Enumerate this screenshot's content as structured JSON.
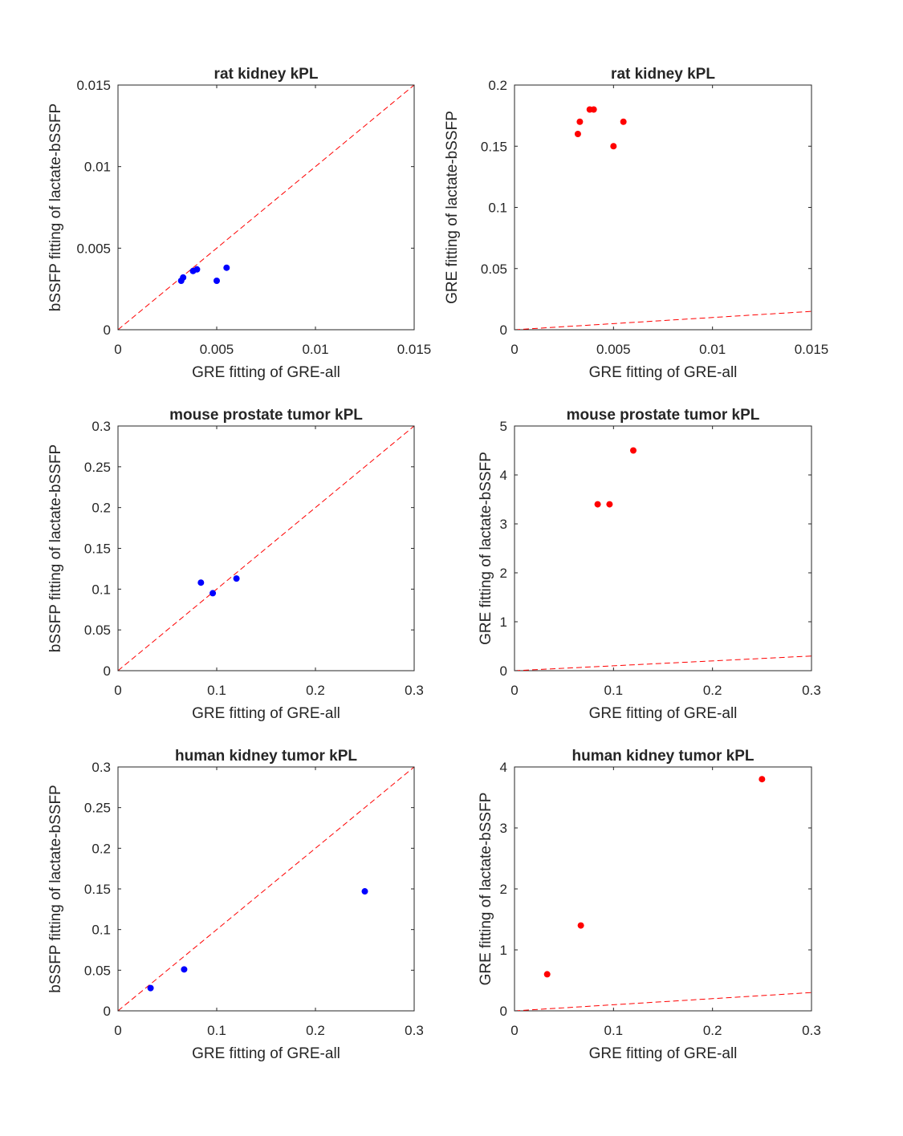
{
  "figure": {
    "background": "#ffffff",
    "axis_color": "#262626"
  },
  "chart_data": [
    {
      "type": "scatter",
      "title": "rat kidney kPL",
      "xlabel": "GRE fitting of GRE-all",
      "ylabel": "bSSFP fitting of lactate-bSSFP",
      "xlim": [
        0,
        0.015
      ],
      "ylim": [
        0,
        0.015
      ],
      "xticks": [
        0,
        0.005,
        0.01,
        0.015
      ],
      "xtick_labels": [
        "0",
        "0.005",
        "0.01",
        "0.015"
      ],
      "yticks": [
        0,
        0.005,
        0.01,
        0.015
      ],
      "ytick_labels": [
        "0",
        "0.005",
        "0.01",
        "0.015"
      ],
      "marker_color": "#0000ff",
      "points": [
        {
          "x": 0.0032,
          "y": 0.003
        },
        {
          "x": 0.0033,
          "y": 0.0032
        },
        {
          "x": 0.0038,
          "y": 0.0036
        },
        {
          "x": 0.004,
          "y": 0.0037
        },
        {
          "x": 0.005,
          "y": 0.003
        },
        {
          "x": 0.0055,
          "y": 0.0038
        }
      ],
      "reference_line": {
        "label": "y = x",
        "x": [
          0,
          0.015
        ],
        "y": [
          0,
          0.015
        ],
        "color": "#ff0000",
        "style": "dashed"
      }
    },
    {
      "type": "scatter",
      "title": "rat kidney kPL",
      "xlabel": "GRE fitting of GRE-all",
      "ylabel": "GRE fitting of lactate-bSSFP",
      "xlim": [
        0,
        0.015
      ],
      "ylim": [
        0,
        0.2
      ],
      "xticks": [
        0,
        0.005,
        0.01,
        0.015
      ],
      "xtick_labels": [
        "0",
        "0.005",
        "0.01",
        "0.015"
      ],
      "yticks": [
        0,
        0.05,
        0.1,
        0.15,
        0.2
      ],
      "ytick_labels": [
        "0",
        "0.05",
        "0.1",
        "0.15",
        "0.2"
      ],
      "marker_color": "#ff0000",
      "points": [
        {
          "x": 0.0032,
          "y": 0.16
        },
        {
          "x": 0.0033,
          "y": 0.17
        },
        {
          "x": 0.0038,
          "y": 0.18
        },
        {
          "x": 0.004,
          "y": 0.18
        },
        {
          "x": 0.005,
          "y": 0.15
        },
        {
          "x": 0.0055,
          "y": 0.17
        }
      ],
      "reference_line": {
        "label": "y = x",
        "x": [
          0,
          0.015
        ],
        "y": [
          0,
          0.015
        ],
        "color": "#ff0000",
        "style": "dashed"
      }
    },
    {
      "type": "scatter",
      "title": "mouse prostate tumor kPL",
      "xlabel": "GRE fitting of GRE-all",
      "ylabel": "bSSFP fitting of lactate-bSSFP",
      "xlim": [
        0,
        0.3
      ],
      "ylim": [
        0,
        0.3
      ],
      "xticks": [
        0,
        0.1,
        0.2,
        0.3
      ],
      "xtick_labels": [
        "0",
        "0.1",
        "0.2",
        "0.3"
      ],
      "yticks": [
        0,
        0.05,
        0.1,
        0.15,
        0.2,
        0.25,
        0.3
      ],
      "ytick_labels": [
        "0",
        "0.05",
        "0.1",
        "0.15",
        "0.2",
        "0.25",
        "0.3"
      ],
      "marker_color": "#0000ff",
      "points": [
        {
          "x": 0.084,
          "y": 0.108
        },
        {
          "x": 0.096,
          "y": 0.095
        },
        {
          "x": 0.12,
          "y": 0.113
        }
      ],
      "reference_line": {
        "label": "y = x",
        "x": [
          0,
          0.3
        ],
        "y": [
          0,
          0.3
        ],
        "color": "#ff0000",
        "style": "dashed"
      }
    },
    {
      "type": "scatter",
      "title": "mouse prostate tumor kPL",
      "xlabel": "GRE fitting of GRE-all",
      "ylabel": "GRE fitting of lactate-bSSFP",
      "xlim": [
        0,
        0.3
      ],
      "ylim": [
        0,
        5
      ],
      "xticks": [
        0,
        0.1,
        0.2,
        0.3
      ],
      "xtick_labels": [
        "0",
        "0.1",
        "0.2",
        "0.3"
      ],
      "yticks": [
        0,
        1,
        2,
        3,
        4,
        5
      ],
      "ytick_labels": [
        "0",
        "1",
        "2",
        "3",
        "4",
        "5"
      ],
      "marker_color": "#ff0000",
      "points": [
        {
          "x": 0.084,
          "y": 3.4
        },
        {
          "x": 0.096,
          "y": 3.4
        },
        {
          "x": 0.12,
          "y": 4.5
        }
      ],
      "reference_line": {
        "label": "y = x",
        "x": [
          0,
          0.3
        ],
        "y": [
          0,
          0.3
        ],
        "color": "#ff0000",
        "style": "dashed"
      }
    },
    {
      "type": "scatter",
      "title": "human kidney tumor kPL",
      "xlabel": "GRE fitting of GRE-all",
      "ylabel": "bSSFP fitting of lactate-bSSFP",
      "xlim": [
        0,
        0.3
      ],
      "ylim": [
        0,
        0.3
      ],
      "xticks": [
        0,
        0.1,
        0.2,
        0.3
      ],
      "xtick_labels": [
        "0",
        "0.1",
        "0.2",
        "0.3"
      ],
      "yticks": [
        0,
        0.05,
        0.1,
        0.15,
        0.2,
        0.25,
        0.3
      ],
      "ytick_labels": [
        "0",
        "0.05",
        "0.1",
        "0.15",
        "0.2",
        "0.25",
        "0.3"
      ],
      "marker_color": "#0000ff",
      "points": [
        {
          "x": 0.033,
          "y": 0.028
        },
        {
          "x": 0.067,
          "y": 0.051
        },
        {
          "x": 0.25,
          "y": 0.147
        }
      ],
      "reference_line": {
        "label": "y = x",
        "x": [
          0,
          0.3
        ],
        "y": [
          0,
          0.3
        ],
        "color": "#ff0000",
        "style": "dashed"
      }
    },
    {
      "type": "scatter",
      "title": "human kidney tumor kPL",
      "xlabel": "GRE fitting of GRE-all",
      "ylabel": "GRE fitting of lactate-bSSFP",
      "xlim": [
        0,
        0.3
      ],
      "ylim": [
        0,
        4
      ],
      "xticks": [
        0,
        0.1,
        0.2,
        0.3
      ],
      "xtick_labels": [
        "0",
        "0.1",
        "0.2",
        "0.3"
      ],
      "yticks": [
        0,
        1,
        2,
        3,
        4
      ],
      "ytick_labels": [
        "0",
        "1",
        "2",
        "3",
        "4"
      ],
      "marker_color": "#ff0000",
      "points": [
        {
          "x": 0.033,
          "y": 0.6
        },
        {
          "x": 0.067,
          "y": 1.4
        },
        {
          "x": 0.25,
          "y": 3.8
        }
      ],
      "reference_line": {
        "label": "y = x",
        "x": [
          0,
          0.3
        ],
        "y": [
          0,
          0.3
        ],
        "color": "#ff0000",
        "style": "dashed"
      }
    }
  ]
}
